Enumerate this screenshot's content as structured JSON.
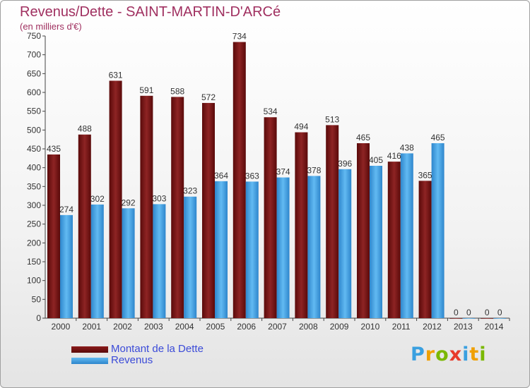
{
  "header": {
    "title": "Revenus/Dette - SAINT-MARTIN-D'ARCé",
    "subtitle": "(en milliers d'€)"
  },
  "colors": {
    "dette": "#8b1a1a",
    "dette_dark": "#5a0a0a",
    "revenus": "#5ab4ee",
    "revenus_dark": "#2e86cc",
    "title": "#a03060",
    "legend_text": "#3b4bd8"
  },
  "logo": {
    "letters": [
      {
        "ch": "P",
        "color": "#3aa0e0"
      },
      {
        "ch": "r",
        "color": "#f0a000"
      },
      {
        "ch": "o",
        "color": "#7ab800"
      },
      {
        "ch": "x",
        "color": "#e83a2a"
      },
      {
        "ch": "i",
        "color": "#3aa0e0"
      },
      {
        "ch": "t",
        "color": "#f0a000"
      },
      {
        "ch": "i",
        "color": "#7ab800"
      }
    ]
  },
  "chart_data": {
    "type": "bar",
    "categories": [
      "2000",
      "2001",
      "2002",
      "2003",
      "2004",
      "2005",
      "2006",
      "2007",
      "2008",
      "2009",
      "2010",
      "2011",
      "2012",
      "2013",
      "2014"
    ],
    "series": [
      {
        "name": "Montant de la Dette",
        "values": [
          435,
          488,
          631,
          591,
          588,
          572,
          734,
          534,
          494,
          513,
          465,
          416,
          365,
          0,
          0
        ]
      },
      {
        "name": "Revenus",
        "values": [
          274,
          302,
          292,
          303,
          323,
          364,
          363,
          374,
          378,
          396,
          405,
          438,
          465,
          0,
          0
        ]
      }
    ],
    "ylim": [
      0,
      750
    ],
    "yticks": [
      0,
      50,
      100,
      150,
      200,
      250,
      300,
      350,
      400,
      450,
      500,
      550,
      600,
      650,
      700,
      750
    ],
    "grid": false,
    "legend_position": "bottom-left"
  }
}
